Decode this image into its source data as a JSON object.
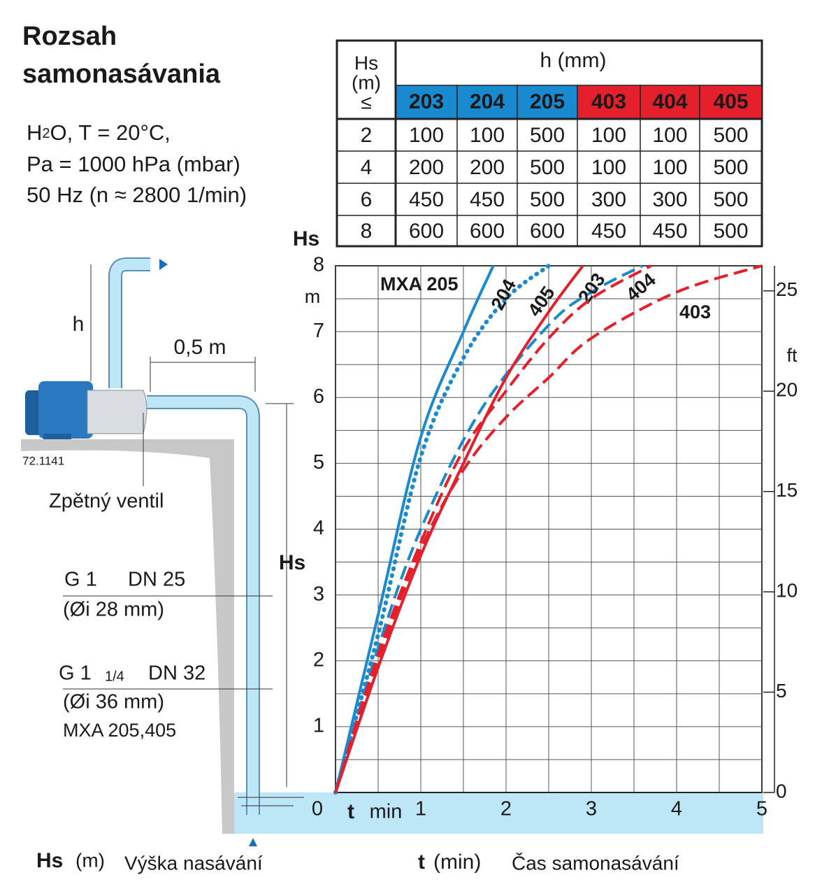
{
  "header": {
    "title_lines": [
      "Rozsah",
      "samonasávania"
    ],
    "formula": [
      "H",
      "2",
      "O, T = 20°C,"
    ],
    "conditions": [
      "Pa = 1000 hPa (mbar)",
      "50 Hz (n ≈ 2800 1/min)"
    ]
  },
  "table": {
    "corner": [
      "Hs",
      "(m)",
      "≤"
    ],
    "group_header": "h (mm)",
    "columns": [
      {
        "label": "203",
        "color": "#1a8ad0"
      },
      {
        "label": "204",
        "color": "#1a8ad0"
      },
      {
        "label": "205",
        "color": "#1a8ad0"
      },
      {
        "label": "403",
        "color": "#e3202b"
      },
      {
        "label": "404",
        "color": "#e3202b"
      },
      {
        "label": "405",
        "color": "#e3202b"
      }
    ],
    "rows": [
      [
        "2",
        "100",
        "100",
        "500",
        "100",
        "100",
        "500"
      ],
      [
        "4",
        "200",
        "200",
        "500",
        "100",
        "100",
        "500"
      ],
      [
        "6",
        "450",
        "450",
        "500",
        "300",
        "300",
        "500"
      ],
      [
        "8",
        "600",
        "600",
        "600",
        "450",
        "450",
        "500"
      ]
    ]
  },
  "diagram": {
    "h": "h",
    "distance": "0,5 m",
    "code": "72.1141",
    "valve": "Zpětný ventil",
    "hs": "Hs",
    "pipe1": [
      "G 1",
      "DN 25",
      "(Øi 28 mm)"
    ],
    "pipe2": [
      "G 1",
      "1/4",
      "DN 32",
      "(Øi 36 mm)",
      "MXA 205,405"
    ]
  },
  "footer": {
    "hs": [
      "Hs",
      "(m)",
      "Výška nasávání"
    ],
    "t": [
      "t",
      "(min)",
      "Čas samonasávání"
    ]
  },
  "chart_data": {
    "type": "line",
    "y_label": "Hs",
    "y_unit": "m",
    "y2_unit": "ft",
    "x_label": [
      "t",
      "min"
    ],
    "xlim": [
      0,
      5
    ],
    "xticks": [
      0,
      1,
      2,
      3,
      4,
      5
    ],
    "xgrid": [
      0.5,
      1.5,
      2.5,
      3.5,
      4.5
    ],
    "ylim": [
      0,
      8
    ],
    "yticks": [
      1,
      2,
      3,
      4,
      5,
      6,
      7,
      8
    ],
    "ygrid": [
      0.5,
      1.5,
      2.5,
      3.5,
      4.5,
      5.5,
      6.5,
      7.5
    ],
    "y2lim": [
      0,
      26.25
    ],
    "y2ticks": [
      0,
      5,
      10,
      15,
      20,
      25
    ],
    "grid": true,
    "series": [
      {
        "name": "MXA 205",
        "color": "#1a8ad0",
        "dash": "solid",
        "x": [
          0,
          0.5,
          1,
          1.5,
          1.85
        ],
        "values": [
          0,
          2.7,
          5.4,
          7.0,
          8
        ]
      },
      {
        "name": "204",
        "color": "#1a8ad0",
        "dash": "dotted",
        "x": [
          0,
          0.5,
          1,
          1.5,
          2,
          2.5
        ],
        "values": [
          0,
          2.4,
          5.1,
          6.6,
          7.5,
          8
        ]
      },
      {
        "name": "203",
        "color": "#1a8ad0",
        "dash": "dashed",
        "x": [
          0,
          0.5,
          1,
          1.7,
          2.5,
          3,
          3.6
        ],
        "values": [
          0,
          2.2,
          4.0,
          5.8,
          7.1,
          7.6,
          8
        ]
      },
      {
        "name": "405",
        "color": "#e3202b",
        "dash": "solid",
        "x": [
          0,
          0.5,
          1,
          1.5,
          2,
          2.5,
          2.9
        ],
        "values": [
          0,
          1.9,
          3.6,
          5.0,
          6.3,
          7.3,
          8
        ]
      },
      {
        "name": "404",
        "color": "#e3202b",
        "dash": "dashed",
        "x": [
          0,
          0.5,
          1,
          1.5,
          2,
          2.5,
          3,
          3.7
        ],
        "values": [
          0,
          2.1,
          3.8,
          5.2,
          6.1,
          6.9,
          7.5,
          8
        ]
      },
      {
        "name": "403",
        "color": "#e3202b",
        "dash": "dashed",
        "x": [
          0,
          0.5,
          1,
          1.5,
          2,
          2.5,
          3,
          4,
          5
        ],
        "values": [
          0,
          2.0,
          3.7,
          4.9,
          5.7,
          6.3,
          6.9,
          7.6,
          8
        ]
      }
    ]
  }
}
